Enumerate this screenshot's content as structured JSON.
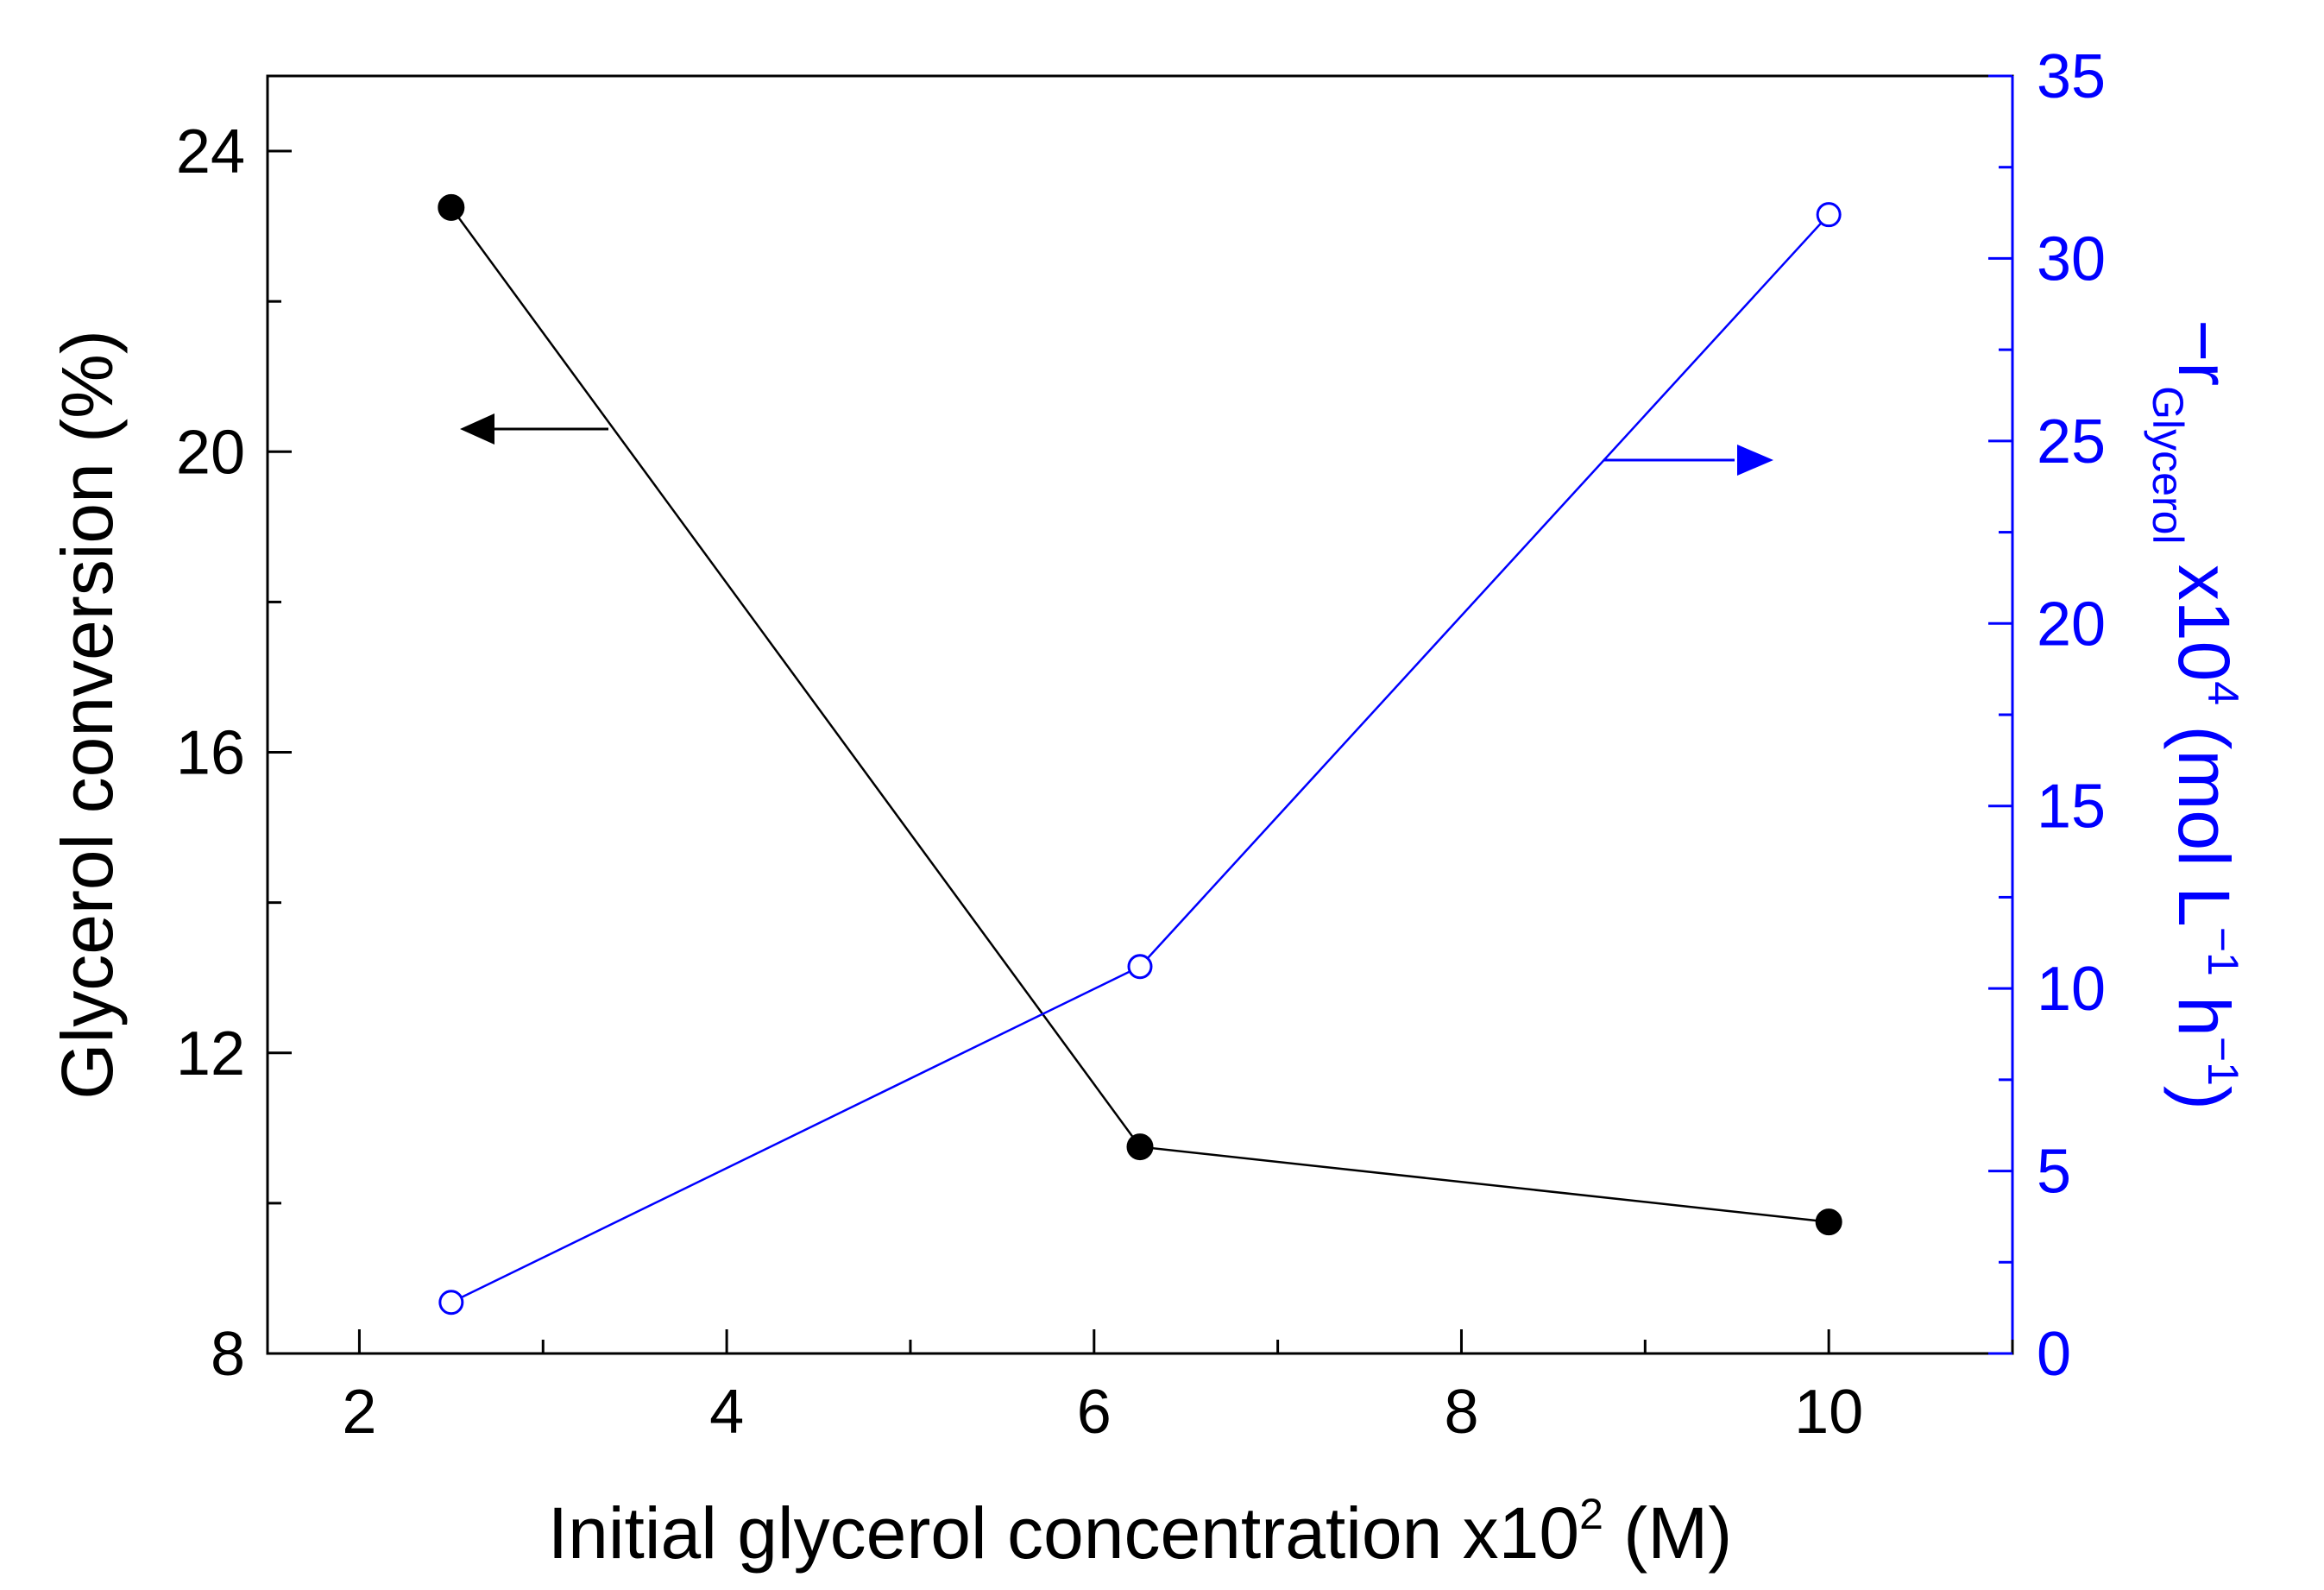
{
  "chart_data": {
    "type": "line",
    "x_axis": {
      "label_main": "Initial glycerol concentration x10",
      "label_sup": "2",
      "label_end": " (M)",
      "range": [
        1.5,
        11
      ],
      "major_ticks": [
        2,
        4,
        6,
        8,
        10
      ],
      "tick_labels": [
        "2",
        "4",
        "6",
        "8",
        "10"
      ],
      "minor_ticks": [
        3,
        5,
        7,
        9,
        11
      ]
    },
    "y_left_axis": {
      "label": "Glycerol conversion (%)",
      "range": [
        8,
        25
      ],
      "major_ticks": [
        8,
        12,
        16,
        20,
        24
      ],
      "tick_labels": [
        "8",
        "12",
        "16",
        "20",
        "24"
      ],
      "minor_ticks": [
        10,
        14,
        18,
        22
      ],
      "color": "#000000"
    },
    "y_right_axis": {
      "label_prefix": "−r",
      "label_sub": "Glycerol",
      "label_mid": " x10",
      "label_sup4": "4",
      "label_paren_open": " (mol L",
      "label_sup_neg1a": "−1",
      "label_h": " h",
      "label_sup_neg1b": "−1",
      "label_paren_close": ")",
      "range": [
        0,
        35
      ],
      "major_ticks": [
        0,
        5,
        10,
        15,
        20,
        25,
        30,
        35
      ],
      "tick_labels": [
        "0",
        "5",
        "10",
        "15",
        "20",
        "25",
        "30",
        "35"
      ],
      "minor_ticks": [
        2.5,
        7.5,
        12.5,
        17.5,
        22.5,
        27.5,
        32.5
      ],
      "color": "#0000ff"
    },
    "series": [
      {
        "name": "Glycerol conversion",
        "axis": "left",
        "marker": "filled-circle",
        "color": "#000000",
        "x": [
          2.5,
          6.25,
          10
        ],
        "y": [
          23.25,
          10.75,
          9.75
        ]
      },
      {
        "name": "-r Glycerol",
        "axis": "right",
        "marker": "open-circle",
        "color": "#0000ff",
        "x": [
          2.5,
          6.25,
          10
        ],
        "y": [
          1.4,
          10.6,
          31.2
        ]
      }
    ],
    "annotations": [
      {
        "type": "arrow",
        "direction": "left",
        "series": "Glycerol conversion",
        "color": "#000000"
      },
      {
        "type": "arrow",
        "direction": "right",
        "series": "-r Glycerol",
        "color": "#0000ff"
      }
    ]
  }
}
